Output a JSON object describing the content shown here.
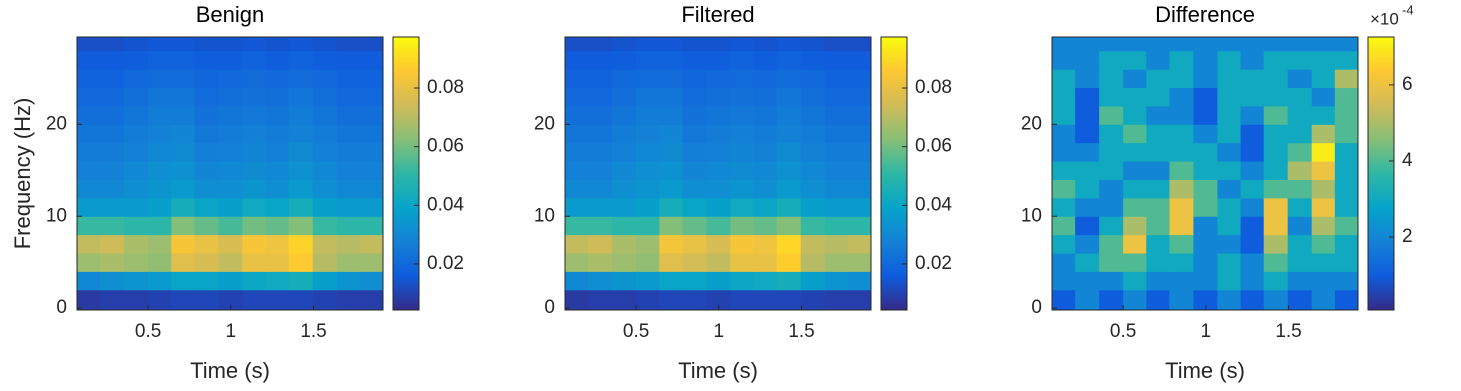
{
  "chart_data": [
    {
      "type": "heatmap",
      "title": "Benign",
      "xlabel": "Time (s)",
      "ylabel": "Frequency (Hz)",
      "x": [
        0.14,
        0.28,
        0.43,
        0.57,
        0.71,
        0.85,
        1.0,
        1.14,
        1.28,
        1.42,
        1.57,
        1.71,
        1.85
      ],
      "y": [
        1,
        3,
        5,
        7,
        9,
        11,
        13,
        15,
        17,
        19,
        21,
        23,
        25,
        27,
        29
      ],
      "xlim": [
        0.07,
        1.92
      ],
      "ylim": [
        -0.2,
        29.5
      ],
      "xticks": [
        0.5,
        1,
        1.5
      ],
      "yticks": [
        0,
        10,
        20
      ],
      "clim": [
        0.0043,
        0.0974
      ],
      "cticks": [
        0.02,
        0.04,
        0.06,
        0.08
      ],
      "colormap": [
        "#352a87",
        "#0f5cdd",
        "#1481d6",
        "#06a4ca",
        "#2eb7a4",
        "#87bf77",
        "#d1bb59",
        "#fec832",
        "#f9fb0e"
      ],
      "z": [
        [
          0.008,
          0.009,
          0.009,
          0.01,
          0.011,
          0.011,
          0.01,
          0.011,
          0.011,
          0.011,
          0.01,
          0.009,
          0.009
        ],
        [
          0.03,
          0.032,
          0.034,
          0.036,
          0.04,
          0.04,
          0.038,
          0.041,
          0.042,
          0.044,
          0.038,
          0.034,
          0.032
        ],
        [
          0.066,
          0.068,
          0.066,
          0.064,
          0.078,
          0.076,
          0.072,
          0.08,
          0.08,
          0.086,
          0.07,
          0.066,
          0.066
        ],
        [
          0.072,
          0.074,
          0.068,
          0.066,
          0.084,
          0.08,
          0.076,
          0.084,
          0.082,
          0.088,
          0.072,
          0.07,
          0.072
        ],
        [
          0.052,
          0.052,
          0.05,
          0.05,
          0.062,
          0.058,
          0.054,
          0.06,
          0.058,
          0.062,
          0.052,
          0.05,
          0.05
        ],
        [
          0.036,
          0.036,
          0.036,
          0.038,
          0.044,
          0.04,
          0.038,
          0.042,
          0.04,
          0.044,
          0.038,
          0.036,
          0.036
        ],
        [
          0.03,
          0.03,
          0.032,
          0.034,
          0.036,
          0.032,
          0.032,
          0.034,
          0.032,
          0.036,
          0.032,
          0.03,
          0.03
        ],
        [
          0.028,
          0.028,
          0.03,
          0.032,
          0.033,
          0.029,
          0.03,
          0.031,
          0.03,
          0.033,
          0.03,
          0.028,
          0.028
        ],
        [
          0.026,
          0.026,
          0.028,
          0.03,
          0.031,
          0.027,
          0.028,
          0.029,
          0.028,
          0.031,
          0.028,
          0.026,
          0.026
        ],
        [
          0.024,
          0.024,
          0.026,
          0.028,
          0.029,
          0.025,
          0.026,
          0.027,
          0.026,
          0.028,
          0.026,
          0.024,
          0.024
        ],
        [
          0.022,
          0.022,
          0.024,
          0.026,
          0.026,
          0.023,
          0.024,
          0.025,
          0.024,
          0.026,
          0.024,
          0.022,
          0.022
        ],
        [
          0.02,
          0.02,
          0.022,
          0.024,
          0.024,
          0.021,
          0.022,
          0.023,
          0.022,
          0.024,
          0.022,
          0.02,
          0.02
        ],
        [
          0.018,
          0.018,
          0.02,
          0.021,
          0.021,
          0.019,
          0.02,
          0.021,
          0.02,
          0.021,
          0.02,
          0.018,
          0.018
        ],
        [
          0.016,
          0.016,
          0.017,
          0.018,
          0.018,
          0.017,
          0.017,
          0.018,
          0.017,
          0.018,
          0.017,
          0.016,
          0.016
        ],
        [
          0.013,
          0.013,
          0.014,
          0.015,
          0.015,
          0.014,
          0.014,
          0.015,
          0.014,
          0.015,
          0.014,
          0.013,
          0.013
        ]
      ]
    },
    {
      "type": "heatmap",
      "title": "Filtered",
      "xlabel": "Time (s)",
      "x": [
        0.14,
        0.28,
        0.43,
        0.57,
        0.71,
        0.85,
        1.0,
        1.14,
        1.28,
        1.42,
        1.57,
        1.71,
        1.85
      ],
      "y": [
        1,
        3,
        5,
        7,
        9,
        11,
        13,
        15,
        17,
        19,
        21,
        23,
        25,
        27,
        29
      ],
      "xlim": [
        0.07,
        1.92
      ],
      "ylim": [
        -0.2,
        29.5
      ],
      "xticks": [
        0.5,
        1,
        1.5
      ],
      "yticks": [
        0,
        10,
        20
      ],
      "clim": [
        0.0043,
        0.0974
      ],
      "cticks": [
        0.02,
        0.04,
        0.06,
        0.08
      ],
      "colormap": [
        "#352a87",
        "#0f5cdd",
        "#1481d6",
        "#06a4ca",
        "#2eb7a4",
        "#87bf77",
        "#d1bb59",
        "#fec832",
        "#f9fb0e"
      ],
      "z": [
        [
          0.008,
          0.009,
          0.009,
          0.01,
          0.011,
          0.011,
          0.01,
          0.011,
          0.011,
          0.011,
          0.01,
          0.009,
          0.009
        ],
        [
          0.03,
          0.032,
          0.034,
          0.036,
          0.04,
          0.04,
          0.038,
          0.041,
          0.042,
          0.044,
          0.038,
          0.034,
          0.032
        ],
        [
          0.066,
          0.068,
          0.066,
          0.064,
          0.078,
          0.075,
          0.072,
          0.08,
          0.08,
          0.087,
          0.07,
          0.066,
          0.066
        ],
        [
          0.072,
          0.074,
          0.068,
          0.066,
          0.083,
          0.08,
          0.076,
          0.084,
          0.082,
          0.089,
          0.072,
          0.07,
          0.072
        ],
        [
          0.052,
          0.052,
          0.05,
          0.05,
          0.062,
          0.058,
          0.054,
          0.06,
          0.058,
          0.062,
          0.052,
          0.05,
          0.05
        ],
        [
          0.036,
          0.036,
          0.036,
          0.038,
          0.044,
          0.04,
          0.038,
          0.042,
          0.04,
          0.044,
          0.038,
          0.036,
          0.036
        ],
        [
          0.03,
          0.03,
          0.032,
          0.034,
          0.036,
          0.032,
          0.032,
          0.034,
          0.032,
          0.036,
          0.032,
          0.03,
          0.03
        ],
        [
          0.028,
          0.028,
          0.03,
          0.032,
          0.033,
          0.029,
          0.03,
          0.031,
          0.03,
          0.033,
          0.03,
          0.028,
          0.028
        ],
        [
          0.026,
          0.026,
          0.028,
          0.03,
          0.031,
          0.027,
          0.028,
          0.029,
          0.028,
          0.031,
          0.028,
          0.026,
          0.026
        ],
        [
          0.024,
          0.024,
          0.026,
          0.028,
          0.029,
          0.025,
          0.026,
          0.027,
          0.026,
          0.028,
          0.026,
          0.024,
          0.024
        ],
        [
          0.022,
          0.022,
          0.024,
          0.026,
          0.026,
          0.023,
          0.024,
          0.025,
          0.024,
          0.026,
          0.024,
          0.022,
          0.022
        ],
        [
          0.02,
          0.02,
          0.022,
          0.024,
          0.024,
          0.021,
          0.022,
          0.023,
          0.022,
          0.024,
          0.022,
          0.02,
          0.02
        ],
        [
          0.018,
          0.018,
          0.02,
          0.021,
          0.021,
          0.019,
          0.02,
          0.021,
          0.02,
          0.021,
          0.02,
          0.018,
          0.018
        ],
        [
          0.016,
          0.016,
          0.017,
          0.018,
          0.018,
          0.017,
          0.017,
          0.018,
          0.017,
          0.018,
          0.017,
          0.016,
          0.016
        ],
        [
          0.013,
          0.013,
          0.014,
          0.015,
          0.015,
          0.014,
          0.014,
          0.015,
          0.014,
          0.015,
          0.014,
          0.013,
          0.013
        ]
      ]
    },
    {
      "type": "heatmap",
      "title": "Difference",
      "xlabel": "Time (s)",
      "colorbar_base": "×10",
      "colorbar_exponent": "-4",
      "x": [
        0.14,
        0.28,
        0.43,
        0.57,
        0.71,
        0.85,
        1.0,
        1.14,
        1.28,
        1.42,
        1.57,
        1.71,
        1.85
      ],
      "y": [
        1,
        3,
        5,
        7,
        9,
        11,
        13,
        15,
        17,
        19,
        21,
        23,
        25,
        27,
        29
      ],
      "xlim": [
        0.07,
        1.92
      ],
      "ylim": [
        -0.2,
        29.5
      ],
      "xticks": [
        0.5,
        1,
        1.5
      ],
      "yticks": [
        0,
        10,
        20
      ],
      "clim": [
        0.08,
        7.26
      ],
      "cticks": [
        2,
        4,
        6
      ],
      "colormap": [
        "#352a87",
        "#0f5cdd",
        "#1481d6",
        "#06a4ca",
        "#2eb7a4",
        "#87bf77",
        "#d1bb59",
        "#fec832",
        "#f9fb0e"
      ],
      "z": [
        [
          1,
          2,
          1,
          2,
          1,
          2,
          1,
          2,
          1,
          2,
          1,
          2,
          1
        ],
        [
          2,
          2,
          2,
          3,
          2,
          2,
          2,
          3,
          2,
          3,
          2,
          2,
          2
        ],
        [
          2,
          3,
          4,
          4,
          3,
          3,
          2,
          3,
          2,
          4,
          3,
          3,
          3
        ],
        [
          3,
          2,
          4,
          6,
          3,
          4,
          2,
          2,
          1,
          5,
          3,
          4,
          3
        ],
        [
          4,
          1,
          3,
          5,
          4,
          6,
          2,
          3,
          1,
          6,
          2,
          5,
          4
        ],
        [
          3,
          2,
          2,
          4,
          4,
          6,
          4,
          3,
          2,
          6,
          3,
          6,
          3
        ],
        [
          4,
          3,
          2,
          3,
          3,
          5,
          4,
          2,
          3,
          4,
          4,
          5,
          3
        ],
        [
          3,
          3,
          3,
          2,
          2,
          4,
          3,
          3,
          2,
          3,
          5,
          6,
          3
        ],
        [
          2,
          2,
          3,
          3,
          3,
          3,
          3,
          2,
          1,
          3,
          4,
          7,
          3
        ],
        [
          2,
          1,
          3,
          4,
          3,
          3,
          2,
          3,
          1,
          3,
          3,
          5,
          4
        ],
        [
          3,
          1,
          4,
          3,
          2,
          2,
          1,
          3,
          2,
          4,
          3,
          3,
          4
        ],
        [
          3,
          1,
          3,
          3,
          3,
          2,
          1,
          3,
          3,
          3,
          3,
          2,
          4
        ],
        [
          3,
          2,
          3,
          2,
          3,
          3,
          2,
          3,
          3,
          3,
          2,
          3,
          5
        ],
        [
          2,
          2,
          3,
          3,
          2,
          3,
          2,
          3,
          2,
          3,
          3,
          3,
          3
        ],
        [
          2,
          2,
          2,
          2,
          2,
          2,
          2,
          2,
          2,
          2,
          2,
          2,
          2
        ]
      ]
    }
  ]
}
